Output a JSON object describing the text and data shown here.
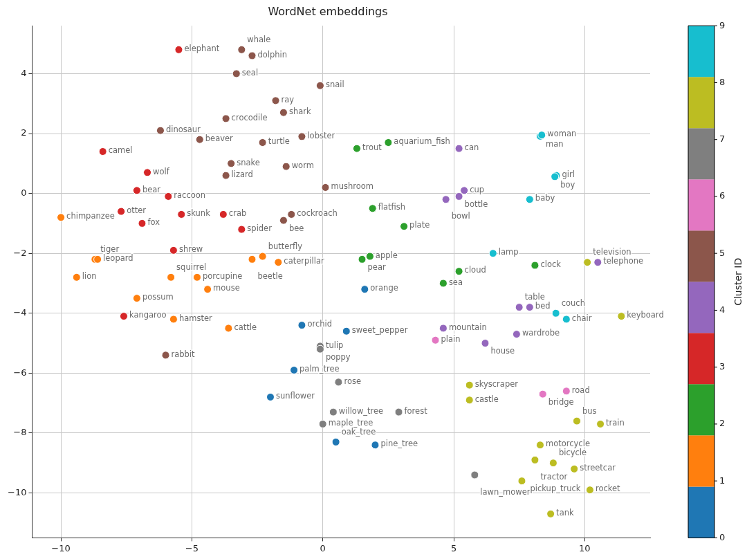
{
  "chart_data": {
    "type": "scatter",
    "title": "WordNet embeddings",
    "clabel": "Cluster ID",
    "xlim": [
      -11.1,
      12.5
    ],
    "xticks": [
      -10,
      -5,
      0,
      5,
      10
    ],
    "ylim": [
      -11.5,
      5.6
    ],
    "yticks": [
      4,
      2,
      0,
      -2,
      -4,
      -6,
      -8,
      -10
    ],
    "clim": [
      0,
      9
    ],
    "cticks": [
      0,
      1,
      2,
      3,
      4,
      5,
      6,
      7,
      8,
      9
    ],
    "grid": true,
    "legend": false,
    "marker": "circle",
    "series": [
      {
        "x": [
          -5.5,
          -3.1,
          -2.7,
          -3.3,
          -0.1,
          -1.8,
          -1.5,
          -3.7,
          -6.2,
          -0.8,
          -4.7,
          -2.3,
          -8.4,
          -6.7,
          -3.5,
          -3.7,
          -1.4,
          0.1,
          -7.1,
          -5.9,
          -10.0,
          -7.7,
          -6.9,
          -5.4,
          -3.8,
          -1.2,
          -1.5,
          -3.1,
          -5.7,
          -2.3,
          -2.7,
          -1.7,
          -8.7,
          -8.6,
          -9.4,
          -5.8,
          -4.8,
          -4.4,
          -7.1,
          -7.6,
          -5.7,
          -3.6,
          -6.0,
          -0.8,
          0.9,
          -0.1,
          -0.1,
          -1.1,
          0.6,
          -2.0,
          0.4,
          2.9,
          0.0,
          0.5,
          2.0,
          1.3,
          2.5,
          5.2,
          8.3,
          8.36,
          8.92,
          8.86,
          5.4,
          5.2,
          4.7,
          7.9,
          1.9,
          3.1,
          1.5,
          1.8,
          6.5,
          8.1,
          5.2,
          4.6,
          1.6,
          10.1,
          10.5,
          7.5,
          7.9,
          8.9,
          9.3,
          11.4,
          4.6,
          4.3,
          6.2,
          7.4,
          5.6,
          5.6,
          8.4,
          9.3,
          9.7,
          10.6,
          8.3,
          8.1,
          8.8,
          9.6,
          5.8,
          7.6,
          10.2,
          8.7
        ],
        "values": [
          4.8,
          4.8,
          4.6,
          4.0,
          3.6,
          3.1,
          2.7,
          2.5,
          2.1,
          1.9,
          1.8,
          1.7,
          1.4,
          0.7,
          1.0,
          0.6,
          0.9,
          0.2,
          0.1,
          -0.1,
          -0.8,
          -0.6,
          -1.0,
          -0.7,
          -0.7,
          -0.7,
          -0.9,
          -1.2,
          -1.9,
          -2.1,
          -2.2,
          -2.3,
          -2.2,
          -2.2,
          -2.8,
          -2.8,
          -2.8,
          -3.2,
          -3.5,
          -4.1,
          -4.2,
          -4.5,
          -5.4,
          -4.4,
          -4.6,
          -5.1,
          -5.2,
          -5.9,
          -6.3,
          -6.8,
          -7.3,
          -7.3,
          -7.7,
          -8.3,
          -8.4,
          1.5,
          1.7,
          1.5,
          1.91,
          1.95,
          0.6,
          0.56,
          0.1,
          -0.1,
          -0.2,
          -0.2,
          -0.5,
          -1.1,
          -2.2,
          -2.1,
          -2.0,
          -2.4,
          -2.6,
          -3.0,
          -3.2,
          -2.3,
          -2.3,
          -3.8,
          -3.8,
          -4.0,
          -4.2,
          -4.1,
          -4.5,
          -4.9,
          -5.0,
          -4.7,
          -6.4,
          -6.9,
          -6.7,
          -6.6,
          -7.6,
          -7.7,
          -8.4,
          -8.9,
          -9.0,
          -9.2,
          -9.4,
          -9.6,
          -9.9,
          -10.7
        ],
        "cvalues": [
          3,
          5,
          5,
          5,
          5,
          5,
          5,
          5,
          5,
          5,
          5,
          5,
          3,
          3,
          5,
          5,
          5,
          5,
          3,
          3,
          1,
          3,
          3,
          3,
          3,
          5,
          5,
          3,
          3,
          1,
          1,
          1,
          1,
          1,
          1,
          1,
          1,
          1,
          1,
          3,
          1,
          1,
          5,
          0,
          0,
          7,
          7,
          0,
          7,
          0,
          7,
          7,
          7,
          0,
          0,
          2,
          2,
          4,
          9,
          9,
          9,
          9,
          4,
          4,
          4,
          9,
          2,
          2,
          2,
          2,
          9,
          2,
          2,
          2,
          0,
          8,
          4,
          4,
          4,
          9,
          9,
          8,
          4,
          6,
          4,
          4,
          8,
          8,
          6,
          6,
          8,
          8,
          8,
          8,
          8,
          8,
          7,
          8,
          8,
          8
        ],
        "value_labels": [
          "elephant",
          "whale",
          "dolphin",
          "seal",
          "snail",
          "ray",
          "shark",
          "crocodile",
          "dinosaur",
          "lobster",
          "beaver",
          "turtle",
          "camel",
          "wolf",
          "snake",
          "lizard",
          "worm",
          "mushroom",
          "bear",
          "raccoon",
          "chimpanzee",
          "otter",
          "fox",
          "skunk",
          "crab",
          "cockroach",
          "bee",
          "spider",
          "shrew",
          "butterfly",
          "beetle",
          "caterpillar",
          "tiger",
          "leopard",
          "lion",
          "squirrel",
          "porcupine",
          "mouse",
          "possum",
          "kangaroo",
          "hamster",
          "cattle",
          "rabbit",
          "orchid",
          "sweet_pepper",
          "tulip",
          "poppy",
          "palm_tree",
          "rose",
          "sunflower",
          "willow_tree",
          "forest",
          "maple_tree",
          "oak_tree",
          "pine_tree",
          "trout",
          "aquarium_fish",
          "can",
          "man",
          "woman",
          "girl",
          "boy",
          "cup",
          "bottle",
          "bowl",
          "baby",
          "flatfish",
          "plate",
          "pear",
          "apple",
          "lamp",
          "clock",
          "cloud",
          "sea",
          "orange",
          "television",
          "telephone",
          "table",
          "bed",
          "couch",
          "chair",
          "keyboard",
          "mountain",
          "plain",
          "house",
          "wardrobe",
          "skyscraper",
          "castle",
          "bridge",
          "road",
          "bus",
          "train",
          "motorcycle",
          "tractor",
          "bicycle",
          "streetcar",
          "lawn_mower",
          "pickup_truck",
          "rocket",
          "tank"
        ]
      }
    ]
  }
}
